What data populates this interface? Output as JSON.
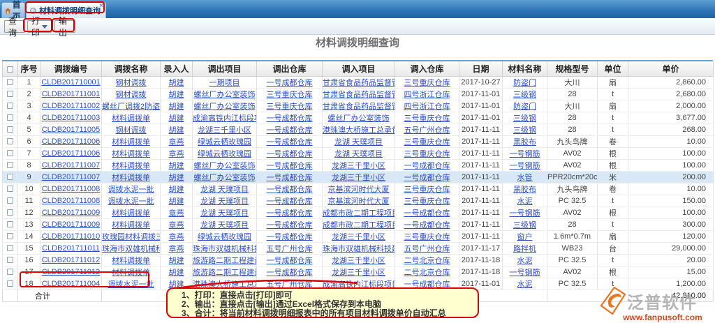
{
  "tabs": {
    "home": "首页",
    "active": "材料调拨明细查询"
  },
  "toolbar": {
    "query": "查询",
    "print": "打印",
    "export": "输出"
  },
  "page_title": "材料调拨明细查询",
  "table": {
    "headers": [
      "序号",
      "调拨编号",
      "调拨名称",
      "录入人",
      "调出项目",
      "调出仓库",
      "调入项目",
      "调入仓库",
      "日期",
      "材料名称",
      "规格型号",
      "单位",
      "单价"
    ],
    "link_columns": [
      1,
      2,
      3,
      4,
      5,
      6,
      7,
      9
    ],
    "selected_row_index": 8,
    "rows": [
      [
        "1",
        "CLDB201710001",
        "钢材调拨",
        "胡建",
        "一期项目",
        "一号成都仓库",
        "甘肃省食品药品监督管..",
        "三号重庆仓库",
        "2017-10-27",
        "防盗门",
        "大川",
        "扇",
        "2,860.00"
      ],
      [
        "2",
        "CLDB201711001",
        "钢材调拨",
        "胡建",
        "螺丝厂办公室装饰",
        "三号重庆仓库",
        "甘肃省食品药品监督管..",
        "四号浙江仓库",
        "2017-11-01",
        "三级钢",
        "28",
        "t",
        "2,680.00"
      ],
      [
        "3",
        "CLDB201711002",
        "螺丝厂调拨2防盗门到..",
        "胡建",
        "螺丝厂办公室装饰",
        "三号重庆仓库",
        "甘肃省食品药品监督管..",
        "四号浙江仓库",
        "2017-11-01",
        "防盗门",
        "大川",
        "扇",
        "2,000.00"
      ],
      [
        "4",
        "CLDB201711003",
        "材料调拨单",
        "胡建",
        "成渝高铁内江标段项目",
        "一号成都仓库",
        "螺丝厂办公室装饰",
        "三号重庆仓库",
        "2017-11-01",
        "三级钢",
        "28",
        "t",
        "3,677.00"
      ],
      [
        "5",
        "CLDB201711005",
        "钢材调拨",
        "胡建",
        "龙湖三千里小区",
        "一号成都仓库",
        "港珠澳大桥施工总承包..",
        "五号广州仓库",
        "2017-11-11",
        "三级钢",
        "28",
        "t",
        "268.00"
      ],
      [
        "6",
        "CLDB201711006",
        "材料调拨单",
        "章燕",
        "绿城云栖玫瑰园",
        "一号成都仓库",
        "龙湖 天璞项目",
        "三号重庆仓库",
        "2017-11-11",
        "黑胶布",
        "九头鸟牌",
        "卷",
        "10.00"
      ],
      [
        "7",
        "CLDB201711006",
        "材料调拨单",
        "章燕",
        "绿城云栖玫瑰园",
        "一号成都仓库",
        "龙湖 天璞项目",
        "三号重庆仓库",
        "2017-11-11",
        "一号钢筋",
        "AV02",
        "根",
        "100.00"
      ],
      [
        "8",
        "CLDB201711007",
        "材料调拨单",
        "胡建",
        "螺丝厂办公室装饰",
        "一号成都仓库",
        "龙湖三千里小区",
        "一号成都仓库",
        "2017-11-11",
        "一号钢筋",
        "AV02",
        "根",
        "100.00"
      ],
      [
        "9",
        "CLDB201711007",
        "材料调拨单",
        "胡建",
        "螺丝厂办公室装饰",
        "一号成都仓库",
        "龙湖三千里小区",
        "一号成都仓库",
        "2017-11-11",
        "水管",
        "PPR20cm*20cm",
        "米",
        "200.00"
      ],
      [
        "10",
        "CLDB201711008",
        "调拨水泥一批",
        "胡建",
        "龙湖 天璞项目",
        "一号成都仓库",
        "京基滨河时代大厦",
        "三号重庆仓库",
        "2017-11-11",
        "黑胶布",
        "九头鸟牌",
        "卷",
        "10.00"
      ],
      [
        "11",
        "CLDB201711008",
        "调拨水泥一批",
        "胡建",
        "龙湖 天璞项目",
        "一号成都仓库",
        "京基滨河时代大厦",
        "三号重庆仓库",
        "2017-11-11",
        "水泥",
        "PC 32.5",
        "t",
        "150.00"
      ],
      [
        "12",
        "CLDB201711009",
        "材料调拨单",
        "章燕",
        "龙湖 天璞项目",
        "一号成都仓库",
        "成都市政二期工程项目",
        "一号成都仓库",
        "2017-11-11",
        "一号钢筋",
        "AV02",
        "根",
        "100.00"
      ],
      [
        "13",
        "CLDB201711009",
        "材料调拨单",
        "章燕",
        "龙湖 天璞项目",
        "一号成都仓库",
        "成都市政二期工程项目",
        "一号成都仓库",
        "2017-11-11",
        "三级钢",
        "28",
        "t",
        "300.00"
      ],
      [
        "14",
        "CLDB201711010",
        "玫瑰园材料调拨三千里..",
        "章燕",
        "绿城云栖玫瑰园",
        "一号成都仓库",
        "龙湖三千里小区",
        "三号重庆仓库",
        "2017-11-11",
        "窗户",
        "1.6m*0.7m",
        "扇",
        "120.00"
      ],
      [
        "15",
        "CLDB201711011",
        "珠海市双雄机械科技建..",
        "章燕",
        "珠海市双雄机械科技建..",
        "五号广州仓库",
        "珠海市双雄机械科技建..",
        "五号广州仓库",
        "2017-11-17",
        "路拌机",
        "WB23",
        "台",
        "29,000.00"
      ],
      [
        "16",
        "CLDB201711012",
        "材料调拨单",
        "胡建",
        "旅游路二期工程建设项目",
        "一号成都仓库",
        "龙湖三千里小区",
        "二号北京仓库",
        "2017-11-18",
        "水泥",
        "PC 32.5",
        "t",
        "20.00"
      ],
      [
        "17",
        "CLDB201711012",
        "材料调拨单",
        "胡建",
        "旅游路二期工程建设项目",
        "一号成都仓库",
        "龙湖三千里小区",
        "二号北京仓库",
        "2017-11-18",
        "一号钢筋",
        "AV02",
        "根",
        "15.00"
      ],
      [
        "18",
        "CLDB201711004",
        "调拨水泥一批",
        "胡建",
        "港珠澳大桥施工总承包..",
        "五号广州仓库",
        "成渝高铁内江标段项目",
        "一号成都仓库",
        "2017-11-01",
        "水泥",
        "PC 32.5",
        "t",
        "1,200.00"
      ]
    ],
    "total_label": "合计",
    "total_value": "42,810.00"
  },
  "note": {
    "lines": [
      "1、打印：直接点击[打印]即可",
      "2、输出：直接点击[输出]通过Excel格式保存到本电脑",
      "3、合计：将当前材料调拨明细报表中的所有项目材料调拨单价自动汇总"
    ]
  },
  "footer": {
    "brand": "泛普软件",
    "url": "www.fanpusoft.com"
  },
  "colors": {
    "tab_bar_blue": "#2e74b4",
    "link_blue": "#2e4fc4",
    "annotation_red": "#dd0000",
    "note_bg": "#ffffcf",
    "selected_row": "#d9e8f6",
    "brand_orange": "#e87722",
    "url_red": "#cf4a1f"
  }
}
